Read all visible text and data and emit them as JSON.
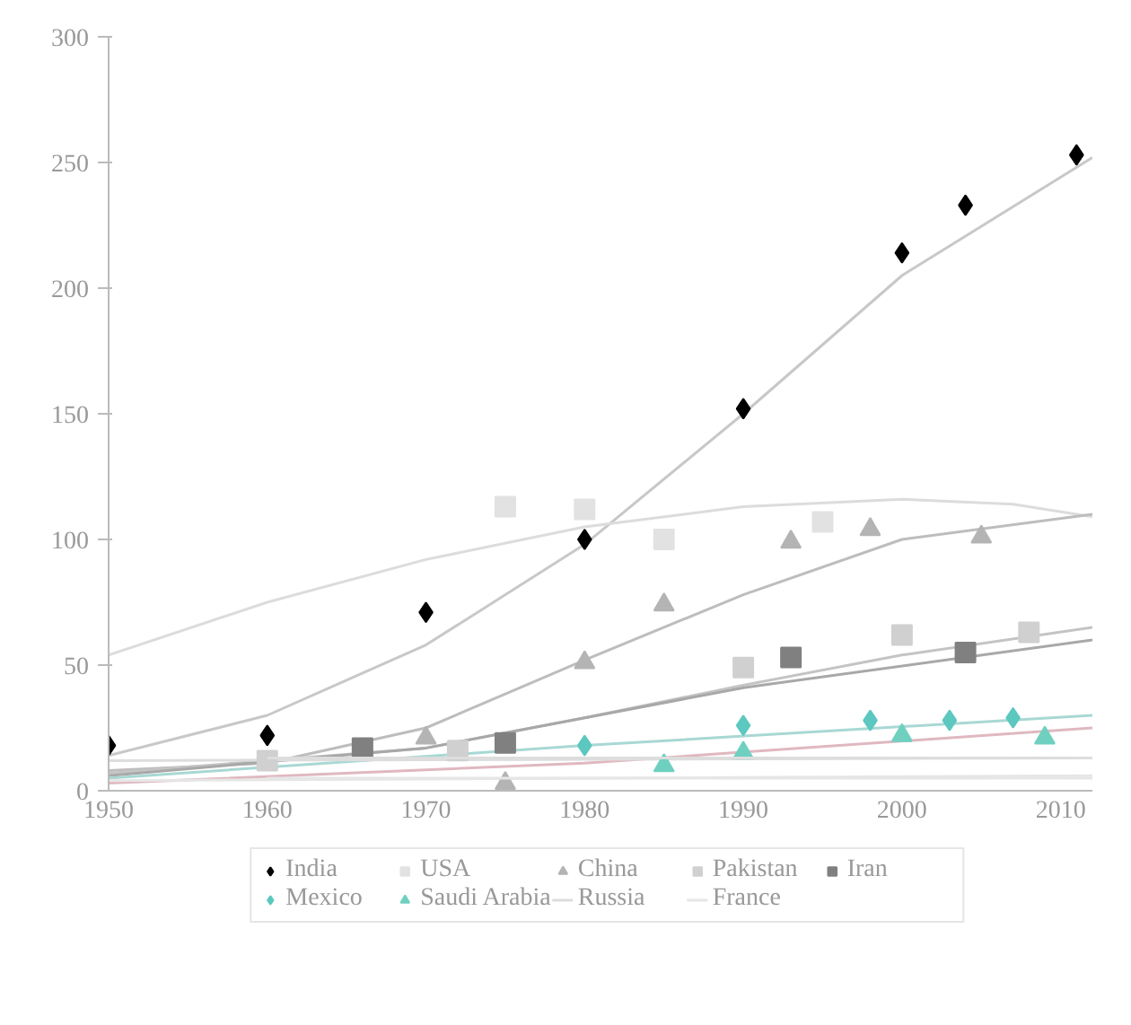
{
  "chart_data": {
    "type": "scatter",
    "xlim": [
      1950,
      2012
    ],
    "ylim": [
      0,
      300
    ],
    "xticks": [
      1950,
      1960,
      1970,
      1980,
      1990,
      2000,
      2010
    ],
    "yticks": [
      0,
      50,
      100,
      150,
      200,
      250,
      300
    ],
    "grid": false,
    "legend": "bottom",
    "series": [
      {
        "type": "line",
        "color": "#c8c8c8",
        "x": [
          1950,
          1960,
          1970,
          1980,
          1990,
          2000,
          2012
        ],
        "values": [
          14,
          30,
          58,
          98,
          150,
          205,
          252
        ]
      },
      {
        "type": "line",
        "color": "#dcdcdc",
        "x": [
          1950,
          1960,
          1970,
          1980,
          1990,
          2000,
          2007,
          2012
        ],
        "values": [
          54,
          75,
          92,
          105,
          113,
          116,
          114,
          109
        ]
      },
      {
        "type": "line",
        "color": "#bdbdbd",
        "x": [
          1950,
          1960,
          1970,
          1980,
          1990,
          2000,
          2012
        ],
        "values": [
          8,
          11,
          25,
          52,
          78,
          100,
          110
        ]
      },
      {
        "type": "line",
        "color": "#c4c4c4",
        "x": [
          1950,
          1970,
          1980,
          1990,
          2000,
          2012
        ],
        "values": [
          7,
          17,
          29,
          42,
          54,
          65
        ]
      },
      {
        "type": "line",
        "color": "#a8a8a8",
        "x": [
          1950,
          1970,
          1990,
          2012
        ],
        "values": [
          6,
          17,
          41,
          60
        ]
      },
      {
        "type": "line",
        "color": "#a8d8d4",
        "x": [
          1950,
          1980,
          2012
        ],
        "values": [
          5,
          18,
          30
        ]
      },
      {
        "type": "line",
        "color": "#e0b8c0",
        "x": [
          1950,
          1980,
          2012
        ],
        "values": [
          3,
          11,
          25
        ]
      },
      {
        "type": "line",
        "color": "#dddddd",
        "x": [
          1950,
          2012
        ],
        "values": [
          12,
          13
        ]
      },
      {
        "type": "line",
        "color": "#e6e6e6",
        "x": [
          1950,
          2012
        ],
        "values": [
          4,
          6
        ]
      },
      {
        "name": "India",
        "type": "scatter",
        "marker": "diamond",
        "color": "#000000",
        "x": [
          1950,
          1960,
          1970,
          1980,
          1990,
          2000,
          2004,
          2011
        ],
        "values": [
          18,
          22,
          71,
          100,
          152,
          214,
          233,
          253
        ]
      },
      {
        "name": "USA",
        "type": "scatter",
        "marker": "square",
        "color": "#e2e2e2",
        "x": [
          1975,
          1980,
          1985,
          1995
        ],
        "values": [
          113,
          112,
          100,
          107
        ]
      },
      {
        "name": "China",
        "type": "scatter",
        "marker": "triangle",
        "color": "#b4b4b4",
        "x": [
          1970,
          1975,
          1980,
          1985,
          1993,
          1998,
          2005
        ],
        "values": [
          21,
          3,
          51,
          74,
          99,
          104,
          101
        ]
      },
      {
        "name": "Pakistan",
        "type": "scatter",
        "marker": "square",
        "color": "#d0d0d0",
        "x": [
          1960,
          1972,
          1990,
          2000,
          2008
        ],
        "values": [
          12,
          16,
          49,
          62,
          63
        ]
      },
      {
        "name": "Iran",
        "marker": "square",
        "color": "#808080",
        "x": [
          1966,
          1975,
          1993,
          2004
        ],
        "values": [
          17,
          19,
          53,
          55
        ]
      },
      {
        "name": "Mexico",
        "marker": "diamond",
        "color": "#5cc8c0",
        "x": [
          1980,
          1990,
          1998,
          2003,
          2007
        ],
        "values": [
          18,
          26,
          28,
          28,
          29
        ]
      },
      {
        "name": "Saudi Arabia",
        "marker": "triangle",
        "color": "#6fd0c0",
        "x": [
          1985,
          1990,
          2000,
          2009
        ],
        "values": [
          10,
          15,
          22,
          21
        ]
      },
      {
        "name": "Russia",
        "type": "line",
        "color": "#dddddd",
        "x": [
          1960,
          2012
        ],
        "values": [
          13,
          13
        ]
      },
      {
        "name": "France",
        "type": "line",
        "color": "#e6e6e6",
        "x": [
          1960,
          2012
        ],
        "values": [
          5,
          5
        ]
      }
    ]
  }
}
